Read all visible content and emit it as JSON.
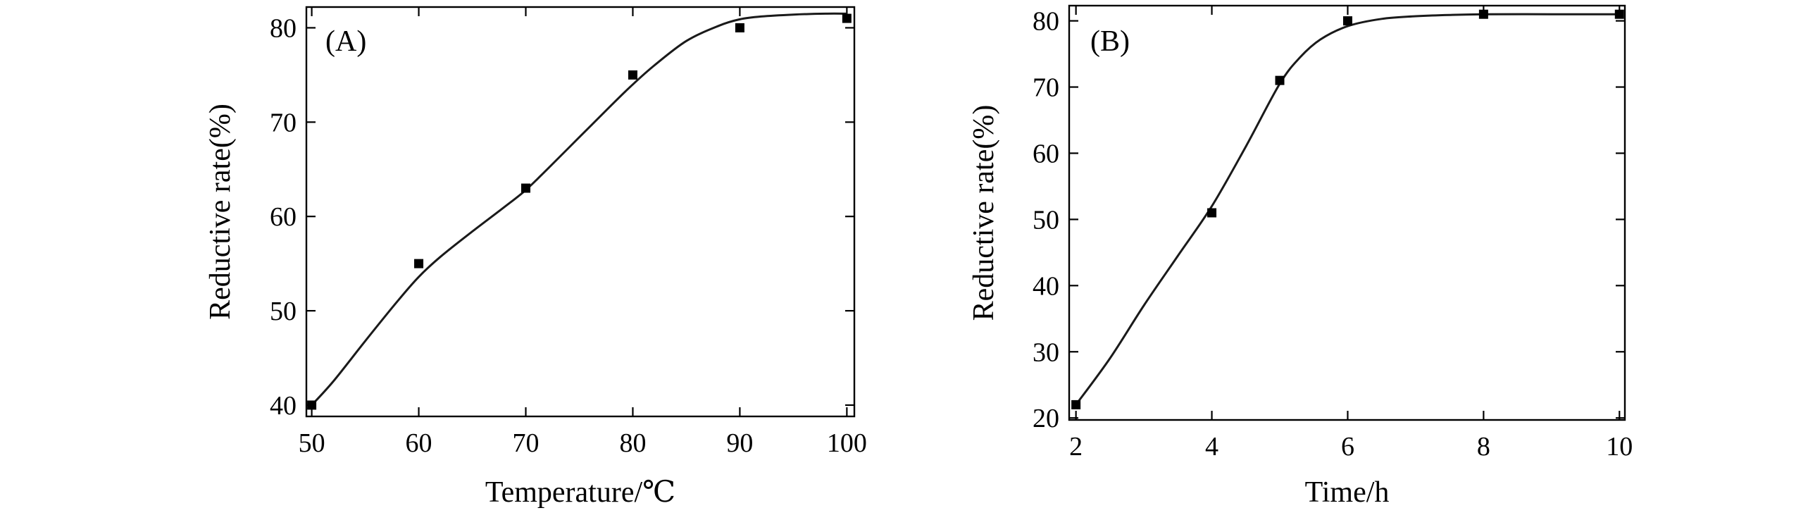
{
  "chart_data": [
    {
      "type": "scatter",
      "panel_label": "(A)",
      "xlabel": "Temperature/℃",
      "ylabel": "Reductive rate(%)",
      "xlim": [
        49.5,
        100.7
      ],
      "ylim": [
        38.8,
        82.2
      ],
      "xticks": [
        50,
        60,
        70,
        80,
        90,
        100
      ],
      "yticks": [
        40,
        50,
        60,
        70,
        80
      ],
      "grid": false,
      "x": [
        50,
        60,
        70,
        80,
        90,
        100
      ],
      "y": [
        40,
        55,
        63,
        75,
        80,
        81
      ],
      "fit_curve": {
        "x": [
          50,
          52,
          55,
          58,
          60,
          62,
          65,
          68,
          70,
          72,
          75,
          78,
          80,
          82,
          85,
          88,
          90,
          92,
          95,
          98,
          100
        ],
        "y": [
          40,
          42.5,
          46.8,
          51,
          53.6,
          55.7,
          58.4,
          61,
          62.8,
          65,
          68.4,
          71.8,
          74,
          76,
          78.6,
          80.2,
          80.9,
          81.2,
          81.4,
          81.5,
          81.5
        ]
      }
    },
    {
      "type": "scatter",
      "panel_label": "(B)",
      "xlabel": "Time/h",
      "ylabel": "Reductive rate(%)",
      "xlim": [
        1.9,
        10.08
      ],
      "ylim": [
        19.7,
        82.3
      ],
      "xticks": [
        2,
        4,
        6,
        8,
        10
      ],
      "yticks": [
        20,
        30,
        40,
        50,
        60,
        70,
        80
      ],
      "grid": false,
      "x": [
        2,
        4,
        5,
        6,
        8,
        10
      ],
      "y": [
        22,
        51,
        71,
        80,
        81,
        81
      ],
      "fit_curve": {
        "x": [
          2,
          2.5,
          3,
          3.5,
          4,
          4.5,
          5,
          5.3,
          5.6,
          6,
          6.5,
          7,
          7.5,
          8,
          9,
          10
        ],
        "y": [
          22,
          29,
          37,
          44.5,
          52,
          61,
          70.5,
          74.5,
          77.2,
          79.2,
          80.3,
          80.7,
          80.9,
          81,
          81,
          81
        ]
      }
    }
  ]
}
